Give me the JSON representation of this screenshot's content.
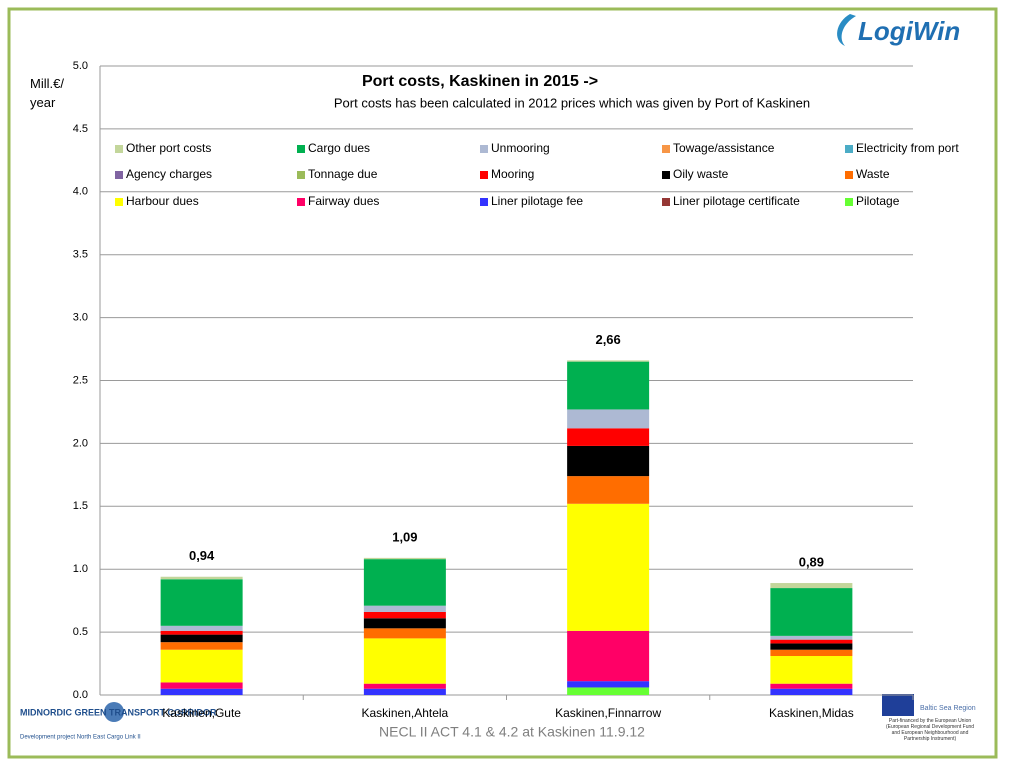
{
  "slide": {
    "logo": "LogiWin",
    "corridor_logo": "MIDNORDIC GREEN TRANSPORT CORRIDOR",
    "corridor_subtitle": "Development project North East Cargo Link II",
    "eu_program": "Baltic Sea Region",
    "eu_note": "Part-financed by the European Union (European Regional Development Fund and European Neighbourhood and Partnership Instrument)",
    "footer": "NECL II ACT 4.1 & 4.2 at Kaskinen 11.9.12"
  },
  "chart_data": {
    "type": "stacked_bar",
    "title": "Port costs, Kaskinen in 2015 ->",
    "subtitle": "Port costs has been calculated in 2012 prices which was given by Port of Kaskinen",
    "y_label": "Mill.€/ year",
    "categories": [
      "Kaskinen,Gute",
      "Kaskinen,Ahtela",
      "Kaskinen,Finnarrow",
      "Kaskinen,Midas"
    ],
    "ylim": [
      0,
      5
    ],
    "yticks": [
      {
        "value": 0,
        "label": "0.0"
      },
      0.5,
      {
        "value": 1,
        "label": "1.0"
      },
      1.5,
      {
        "value": 2,
        "label": "2.0"
      },
      2.5,
      {
        "value": 3,
        "label": "3.0"
      },
      3.5,
      {
        "value": 4,
        "label": "4.0"
      },
      4.5,
      {
        "value": 5,
        "label": "5.0"
      }
    ],
    "grid": true,
    "series": [
      {
        "name": "Other port costs",
        "color": "#c3d69b",
        "values": [
          0.02,
          0.01,
          0.01,
          0.04
        ]
      },
      {
        "name": "Cargo dues",
        "color": "#00b050",
        "values": [
          0.37,
          0.37,
          0.38,
          0.38
        ]
      },
      {
        "name": "Unmooring",
        "color": "#adb9d3",
        "values": [
          0.04,
          0.05,
          0.15,
          0.03
        ]
      },
      {
        "name": "Towage/assistance",
        "color": "#f79646",
        "values": [
          0,
          0,
          0,
          0
        ]
      },
      {
        "name": "Electricity from port",
        "color": "#4bacc6",
        "values": [
          0,
          0,
          0,
          0
        ]
      },
      {
        "name": "Agency charges",
        "color": "#8064a2",
        "values": [
          0,
          0,
          0,
          0
        ]
      },
      {
        "name": "Tonnage due",
        "color": "#9bbb59",
        "values": [
          0,
          0,
          0,
          0
        ]
      },
      {
        "name": "Mooring",
        "color": "#ff0000",
        "values": [
          0.03,
          0.05,
          0.14,
          0.03
        ]
      },
      {
        "name": "Oily waste",
        "color": "#000000",
        "values": [
          0.06,
          0.08,
          0.24,
          0.05
        ]
      },
      {
        "name": "Waste",
        "color": "#ff6d00",
        "values": [
          0.06,
          0.08,
          0.22,
          0.05
        ]
      },
      {
        "name": "Harbour dues",
        "color": "#ffff00",
        "values": [
          0.26,
          0.36,
          1.01,
          0.22
        ]
      },
      {
        "name": "Fairway dues",
        "color": "#ff0066",
        "values": [
          0.05,
          0.04,
          0.4,
          0.04
        ]
      },
      {
        "name": "Liner pilotage fee",
        "color": "#3333ff",
        "values": [
          0.05,
          0.05,
          0.05,
          0.05
        ]
      },
      {
        "name": "Liner pilotage certificate",
        "color": "#953735",
        "values": [
          0,
          0,
          0,
          0
        ]
      },
      {
        "name": "Pilotage",
        "color": "#66ff33",
        "values": [
          0,
          0,
          0.06,
          0
        ]
      }
    ],
    "totals": {
      "values": [
        0.94,
        1.09,
        2.66,
        0.89
      ],
      "value_labels": [
        "0,94",
        "1,09",
        "2,66",
        "0,89"
      ]
    }
  }
}
